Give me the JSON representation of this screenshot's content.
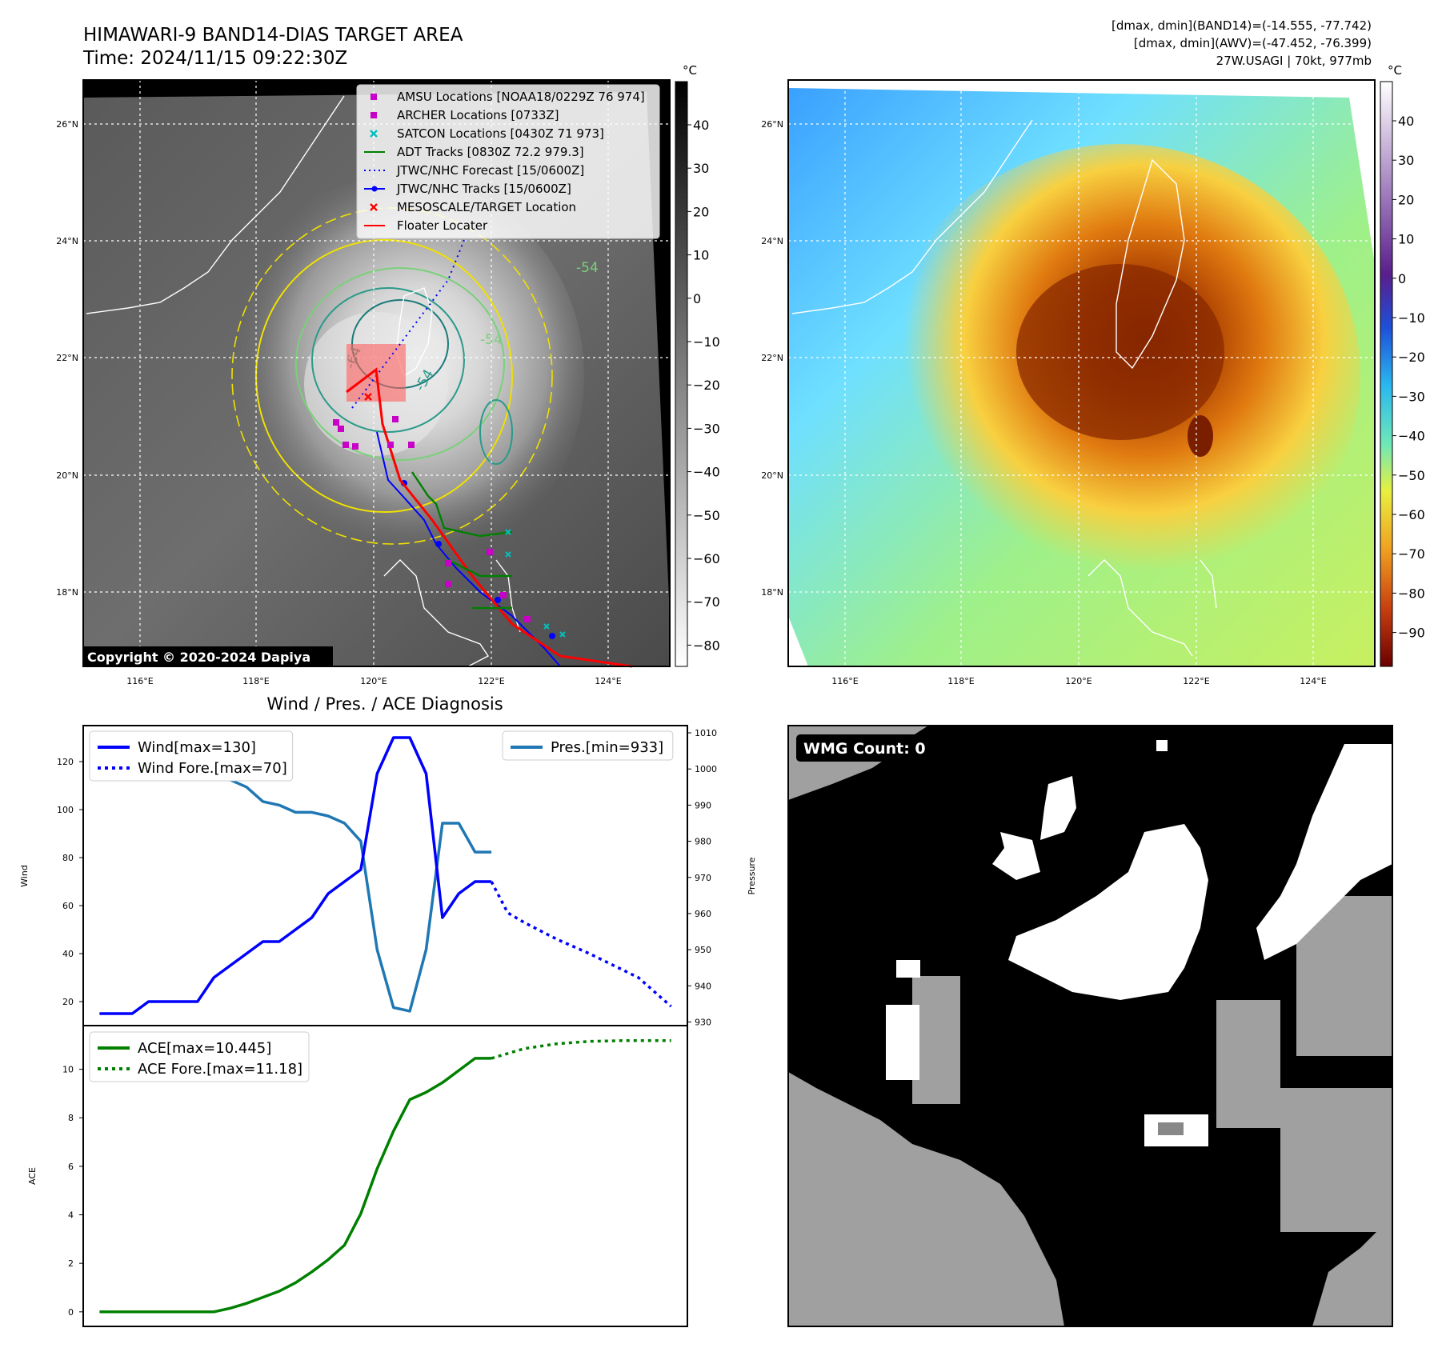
{
  "header": {
    "title": "HIMAWARI-9 BAND14-DIAS TARGET AREA",
    "time": "Time: 2024/11/15 09:22:30Z",
    "dmax_band14": "[dmax, dmin](BAND14)=(-14.555, -77.742)",
    "dmax_awv": "[dmax, dmin](AWV)=(-47.452, -76.399)",
    "storm": "27W.USAGI | 70kt, 977mb",
    "copyright": "Copyright © 2020-2024 Dapiya"
  },
  "map": {
    "lon_labels": [
      "116°E",
      "118°E",
      "120°E",
      "122°E",
      "124°E"
    ],
    "lat_labels": [
      "26°N",
      "24°N",
      "22°N",
      "20°N",
      "18°N"
    ],
    "contour_labels": [
      "-64",
      "-54",
      "-54",
      "-54"
    ],
    "colorbar_unit": "°C",
    "left_colorbar_ticks": [
      "40",
      "30",
      "20",
      "10",
      "0",
      "−10",
      "−20",
      "−30",
      "−40",
      "−50",
      "−60",
      "−70",
      "−80"
    ],
    "right_colorbar_ticks": [
      "40",
      "30",
      "20",
      "10",
      "0",
      "−10",
      "−20",
      "−30",
      "−40",
      "−50",
      "−60",
      "−70",
      "−80",
      "−90"
    ],
    "legend": [
      {
        "label": "AMSU Locations [NOAA18/0229Z 76 974]",
        "color": "#c800c8",
        "marker": "square"
      },
      {
        "label": "ARCHER Locations [0733Z]",
        "color": "#c800c8",
        "marker": "square"
      },
      {
        "label": "SATCON Locations [0430Z 71 973]",
        "color": "#00c0c0",
        "marker": "x"
      },
      {
        "label": "ADT Tracks [0830Z 72.2 979.3]",
        "color": "#008000",
        "marker": "line"
      },
      {
        "label": "JTWC/NHC Forecast [15/0600Z]",
        "color": "#0000ff",
        "marker": "dotted"
      },
      {
        "label": "JTWC/NHC Tracks [15/0600Z]",
        "color": "#0000ff",
        "marker": "line-dot"
      },
      {
        "label": "MESOSCALE/TARGET Location",
        "color": "#ff0000",
        "marker": "x"
      },
      {
        "label": "Floater Locater",
        "color": "#ff0000",
        "marker": "line"
      }
    ]
  },
  "wmg": {
    "label": "WMG Count: 0"
  },
  "chart_data": [
    {
      "type": "line",
      "title": "Wind / Pres. / ACE Diagnosis",
      "ylabel": "Wind",
      "ylim": [
        10,
        135
      ],
      "yticks": [
        20,
        40,
        60,
        80,
        100,
        120
      ],
      "series": [
        {
          "name": "Wind[max=130]",
          "color": "#0000ff",
          "style": "solid",
          "x": [
            0,
            1,
            2,
            3,
            4,
            5,
            6,
            7,
            8,
            9,
            10,
            11,
            12,
            13,
            14,
            15,
            16,
            17,
            18,
            19,
            20,
            21,
            22,
            23,
            24
          ],
          "values": [
            15,
            15,
            15,
            20,
            20,
            20,
            20,
            30,
            35,
            40,
            45,
            45,
            50,
            55,
            65,
            70,
            75,
            115,
            130,
            130,
            115,
            55,
            65,
            70,
            70
          ]
        },
        {
          "name": "Wind Fore.[max=70]",
          "color": "#0000ff",
          "style": "dotted",
          "x": [
            24,
            25,
            26,
            28,
            30,
            33,
            35
          ],
          "values": [
            70,
            57,
            53,
            46,
            40,
            30,
            18
          ]
        }
      ]
    },
    {
      "type": "line",
      "ylabel": "Pressure",
      "ylim": [
        929,
        1012
      ],
      "yticks": [
        930,
        940,
        950,
        960,
        970,
        980,
        990,
        1000,
        1010
      ],
      "series": [
        {
          "name": "Pres.[min=933]",
          "color": "#1f77b4",
          "style": "solid",
          "x": [
            0,
            1,
            2,
            3,
            4,
            5,
            6,
            7,
            8,
            9,
            10,
            11,
            12,
            13,
            14,
            15,
            16,
            17,
            18,
            19,
            20,
            21,
            22,
            23,
            24
          ],
          "values": [
            1008,
            1008,
            1007,
            1007,
            1006,
            1005,
            1001,
            999,
            997,
            995,
            991,
            990,
            988,
            988,
            987,
            985,
            980,
            950,
            934,
            933,
            950,
            985,
            985,
            977,
            977
          ]
        }
      ]
    },
    {
      "type": "line",
      "ylabel": "ACE",
      "ylim": [
        -0.6,
        11.8
      ],
      "yticks": [
        0,
        2,
        4,
        6,
        8,
        10
      ],
      "series": [
        {
          "name": "ACE[max=10.445]",
          "color": "#008000",
          "style": "solid",
          "x": [
            0,
            1,
            2,
            3,
            4,
            5,
            6,
            7,
            8,
            9,
            10,
            11,
            12,
            13,
            14,
            15,
            16,
            17,
            18,
            19,
            20,
            21,
            22,
            23,
            24
          ],
          "values": [
            0,
            0,
            0,
            0,
            0,
            0,
            0,
            0,
            0.15,
            0.35,
            0.6,
            0.85,
            1.2,
            1.65,
            2.15,
            2.75,
            4.05,
            5.9,
            7.45,
            8.75,
            9.05,
            9.45,
            9.95,
            10.45,
            10.45
          ]
        },
        {
          "name": "ACE Fore.[max=11.18]",
          "color": "#008000",
          "style": "dotted",
          "x": [
            24,
            26,
            28,
            30,
            32,
            35
          ],
          "values": [
            10.45,
            10.85,
            11.05,
            11.15,
            11.18,
            11.18
          ]
        }
      ]
    }
  ]
}
